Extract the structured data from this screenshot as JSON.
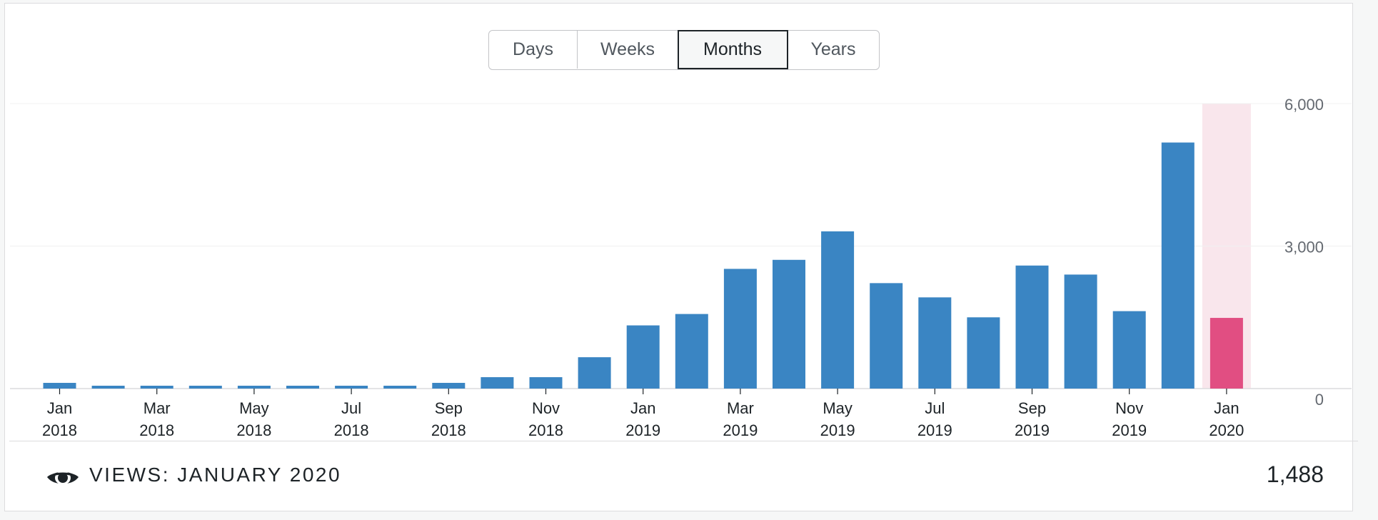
{
  "periods": [
    {
      "label": "Days",
      "selected": false
    },
    {
      "label": "Weeks",
      "selected": false
    },
    {
      "label": "Months",
      "selected": true
    },
    {
      "label": "Years",
      "selected": false
    }
  ],
  "footer": {
    "icon": "eye-icon",
    "label": "VIEWS: JANUARY 2020",
    "value": "1,488"
  },
  "chart_data": {
    "type": "bar",
    "categories": [
      "Jan 2018",
      "Feb 2018",
      "Mar 2018",
      "Apr 2018",
      "May 2018",
      "Jun 2018",
      "Jul 2018",
      "Aug 2018",
      "Sep 2018",
      "Oct 2018",
      "Nov 2018",
      "Dec 2018",
      "Jan 2019",
      "Feb 2019",
      "Mar 2019",
      "Apr 2019",
      "May 2019",
      "Jun 2019",
      "Jul 2019",
      "Aug 2019",
      "Sep 2019",
      "Oct 2019",
      "Nov 2019",
      "Dec 2019",
      "Jan 2020"
    ],
    "tick_labels": [
      {
        "month": "Jan",
        "year": "2018",
        "index": 0
      },
      {
        "month": "Mar",
        "year": "2018",
        "index": 2
      },
      {
        "month": "May",
        "year": "2018",
        "index": 4
      },
      {
        "month": "Jul",
        "year": "2018",
        "index": 6
      },
      {
        "month": "Sep",
        "year": "2018",
        "index": 8
      },
      {
        "month": "Nov",
        "year": "2018",
        "index": 10
      },
      {
        "month": "Jan",
        "year": "2019",
        "index": 12
      },
      {
        "month": "Mar",
        "year": "2019",
        "index": 14
      },
      {
        "month": "May",
        "year": "2019",
        "index": 16
      },
      {
        "month": "Jul",
        "year": "2019",
        "index": 18
      },
      {
        "month": "Sep",
        "year": "2019",
        "index": 20
      },
      {
        "month": "Nov",
        "year": "2019",
        "index": 22
      },
      {
        "month": "Jan",
        "year": "2020",
        "index": 24
      }
    ],
    "values": [
      120,
      60,
      60,
      60,
      60,
      60,
      60,
      60,
      120,
      240,
      240,
      660,
      1330,
      1570,
      2520,
      2710,
      3310,
      2220,
      1920,
      1500,
      2590,
      2400,
      1630,
      5180,
      1488
    ],
    "highlight_index": 24,
    "ylim": [
      0,
      6000
    ],
    "yticks": [
      "0",
      "3,000",
      "6,000"
    ],
    "bar_color": "#3a85c3",
    "highlight_color": "#e14e82",
    "highlight_band_color": "#f9e6ec",
    "grid": true
  }
}
